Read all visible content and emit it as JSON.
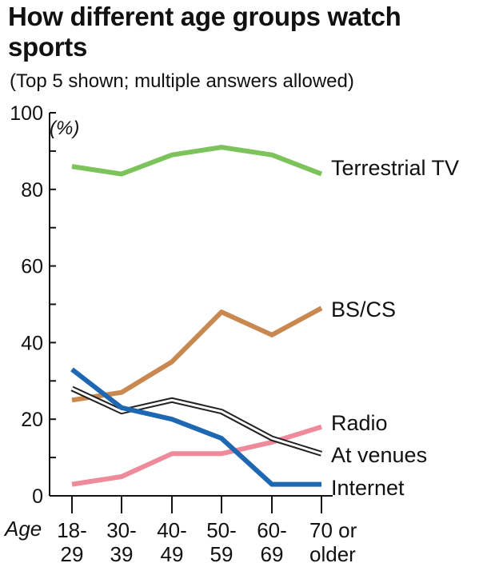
{
  "chart_data": {
    "type": "line",
    "title": "How different age groups watch sports",
    "subtitle": "(Top 5 shown; multiple answers allowed)",
    "ylabel": "(%)",
    "xlabel": "Age",
    "ylim": [
      0,
      100
    ],
    "yticks": [
      "0",
      "20",
      "40",
      "60",
      "80",
      "100"
    ],
    "categories": [
      [
        "18-",
        "29"
      ],
      [
        "30-",
        "39"
      ],
      [
        "40-",
        "49"
      ],
      [
        "50-",
        "59"
      ],
      [
        "60-",
        "69"
      ],
      [
        "70 or",
        "older"
      ]
    ],
    "grid": false,
    "legend": "direct labels at right end of each line",
    "series": [
      {
        "name": "Terrestrial TV",
        "values": [
          86,
          84,
          89,
          91,
          89,
          84
        ],
        "color": "#7bc35a",
        "style": "solid"
      },
      {
        "name": "BS/CS",
        "values": [
          25,
          27,
          35,
          48,
          42,
          49
        ],
        "color": "#c98850",
        "style": "solid"
      },
      {
        "name": "Radio",
        "values": [
          3,
          5,
          11,
          11,
          14,
          18
        ],
        "color": "#ee8a9a",
        "style": "solid"
      },
      {
        "name": "At venues",
        "values": [
          28,
          22,
          25,
          22,
          15,
          11
        ],
        "color": "#222222",
        "style": "outlined"
      },
      {
        "name": "Internet",
        "values": [
          33,
          23,
          20,
          15,
          3,
          3
        ],
        "color": "#1e67b3",
        "style": "solid"
      }
    ]
  }
}
